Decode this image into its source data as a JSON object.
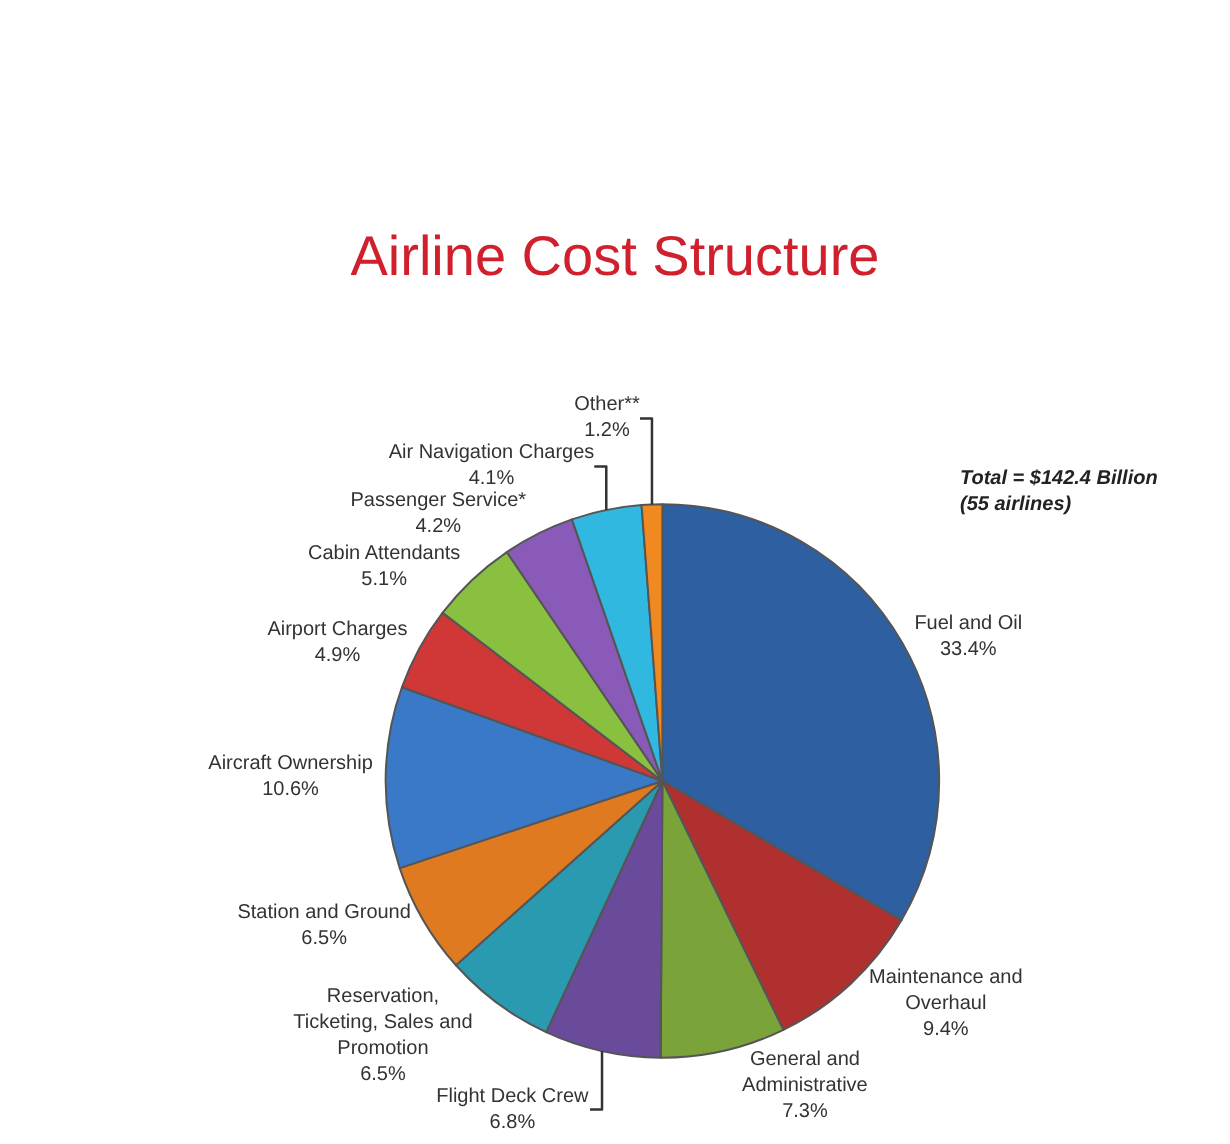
{
  "chart_data": {
    "type": "pie",
    "title": "Airline Cost Structure",
    "categories": [
      "Fuel and Oil",
      "Maintenance and Overhaul",
      "General and Administrative",
      "Flight Deck Crew",
      "Reservation, Ticketing, Sales and Promotion",
      "Station and Ground",
      "Aircraft Ownership",
      "Airport Charges",
      "Cabin Attendants",
      "Passenger Service*",
      "Air Navigation Charges",
      "Other**"
    ],
    "values": [
      33.4,
      9.4,
      7.3,
      6.8,
      6.5,
      6.5,
      10.6,
      4.9,
      5.1,
      4.2,
      4.1,
      1.2
    ],
    "value_labels": [
      "33.4%",
      "9.4%",
      "7.3%",
      "6.8%",
      "6.5%",
      "6.5%",
      "10.6%",
      "4.9%",
      "5.1%",
      "4.2%",
      "4.1%",
      "1.2%"
    ],
    "colors": [
      "#2e5fa0",
      "#b03030",
      "#7aa33a",
      "#6a4a9a",
      "#2a9ab0",
      "#e07a20",
      "#3a78c8",
      "#d03838",
      "#8ac040",
      "#8a5ab8",
      "#30b8e0",
      "#f08a20"
    ],
    "annotations": [
      "Total = $142.4 Billion (55 airlines)"
    ],
    "legend": false
  }
}
